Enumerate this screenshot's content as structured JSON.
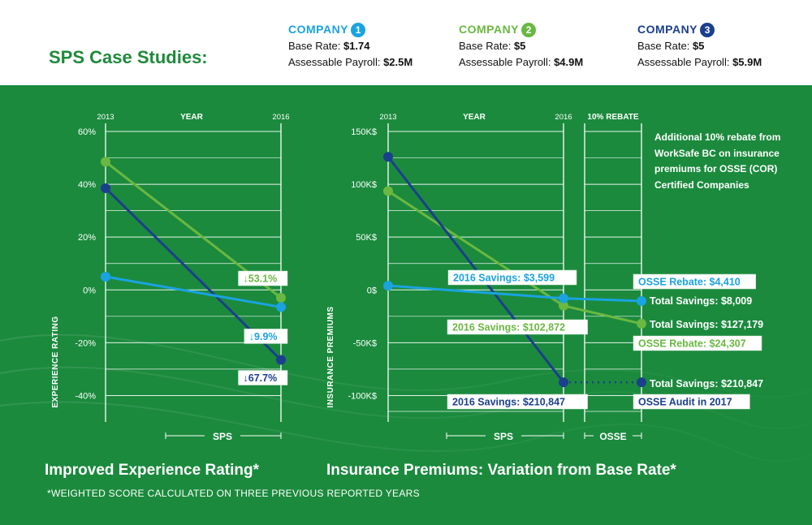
{
  "page_title": "SPS Case Studies:",
  "companies": [
    {
      "name": "COMPANY",
      "number": "1",
      "color": "#1aa3e0",
      "base_rate_label": "Base Rate:",
      "base_rate": "$1.74",
      "payroll_label": "Assessable Payroll:",
      "payroll": "$2.5M"
    },
    {
      "name": "COMPANY",
      "number": "2",
      "color": "#6ab841",
      "base_rate_label": "Base Rate:",
      "base_rate": "$5",
      "payroll_label": "Assessable Payroll:",
      "payroll": "$4.9M"
    },
    {
      "name": "COMPANY",
      "number": "3",
      "color": "#1b3f8c",
      "base_rate_label": "Base Rate:",
      "base_rate": "$5",
      "payroll_label": "Assessable Payroll:",
      "payroll": "$5.9M"
    }
  ],
  "rebate_note": "Additional 10% rebate from WorkSafe BC on insurance premiums for OSSE (COR) Certified Companies",
  "footnote": "*WEIGHTED SCORE CALCULATED ON THREE PREVIOUS REPORTED YEARS",
  "colors": {
    "panel": "#1b8a3d",
    "light_blue": "#1aa3e0",
    "light_green": "#6ab841",
    "dark_blue": "#1b3f8c"
  },
  "chart_data": [
    {
      "type": "line",
      "title": "Improved Experience Rating*",
      "top_label": "YEAR",
      "x": [
        "2013",
        "2016"
      ],
      "ylabel": "EXPERIENCE RATING",
      "yticks": [
        "60%",
        "40%",
        "20%",
        "0%",
        "-20%",
        "-40%"
      ],
      "ylim": [
        -50,
        60
      ],
      "bottom_label": "SPS",
      "series": [
        {
          "company": "1",
          "values": [
            5,
            -6.5
          ],
          "change_label": "9.9%"
        },
        {
          "company": "2",
          "values": [
            48.5,
            -3
          ],
          "change_label": "53.1%"
        },
        {
          "company": "3",
          "values": [
            38.5,
            -26.5
          ],
          "change_label": "67.7%"
        }
      ]
    },
    {
      "type": "line",
      "title": "Insurance Premiums: Variation from Base Rate*",
      "top_label": "YEAR",
      "rebate_label": "10% REBATE",
      "x": [
        "2013",
        "2016"
      ],
      "ylabel": "INSURANCE PREMIUMS",
      "yticks": [
        "150K$",
        "100K$",
        "50K$",
        "0$",
        "-50K$",
        "-100K$"
      ],
      "ylim": [
        -125,
        150
      ],
      "bottom_labels": [
        "SPS",
        "OSSE"
      ],
      "series": [
        {
          "company": "1",
          "values": [
            4,
            -8
          ],
          "final": -10.5,
          "savings_label": "2016 Savings: $3,599",
          "rebate_label": "OSSE Rebate: $4,410",
          "total_label": "Total Savings: $8,009"
        },
        {
          "company": "2",
          "values": [
            93.5,
            -15
          ],
          "final": -32,
          "savings_label": "2016 Savings: $102,872",
          "rebate_label": "OSSE Rebate: $24,307",
          "total_label": "Total Savings: $127,179"
        },
        {
          "company": "3",
          "values": [
            126,
            -87.5
          ],
          "final": -87.5,
          "savings_label": "2016 Savings: $210,847",
          "rebate_label": "OSSE Audit in 2017",
          "total_label": "Total Savings: $210,847"
        }
      ]
    }
  ]
}
